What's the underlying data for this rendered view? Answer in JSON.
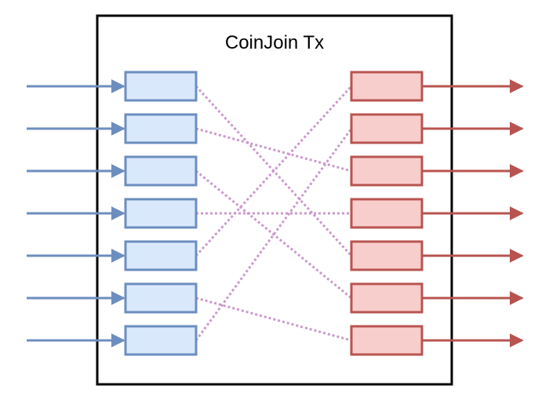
{
  "title": "CoinJoin Tx",
  "colors": {
    "frame": "#000000",
    "input_fill": "#dae8fc",
    "input_stroke": "#6c8ebf",
    "output_fill": "#f8cecc",
    "output_stroke": "#b85450",
    "link": "#cc99cc"
  },
  "input_count": 7,
  "output_count": 7,
  "links": [
    {
      "from": 1,
      "to": 5
    },
    {
      "from": 2,
      "to": 3
    },
    {
      "from": 3,
      "to": 6
    },
    {
      "from": 4,
      "to": 4
    },
    {
      "from": 5,
      "to": 1
    },
    {
      "from": 6,
      "to": 7
    },
    {
      "from": 7,
      "to": 2
    }
  ]
}
